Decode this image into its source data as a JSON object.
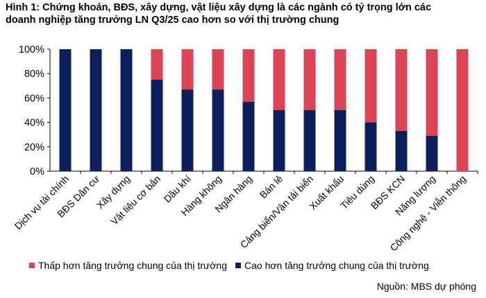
{
  "title": {
    "line1": "Hình 1: Chứng khoán, BĐS, xây dựng, vật liệu xây dựng là các ngành có tỷ trọng lớn các",
    "line2": "doanh nghiệp tăng trưởng LN Q3/25 cao hơn so với thị trường chung"
  },
  "source": "Nguồn: MBS dự phóng",
  "chart_data": {
    "type": "bar",
    "stacked": true,
    "percent": true,
    "categories": [
      "Dịch vụ tài chính",
      "BĐS Dân cư",
      "Xây dựng",
      "Vật liệu cơ bản",
      "Dầu khí",
      "Hàng không",
      "Ngân hàng",
      "Bán lẻ",
      "Cảng biển/Vận tải biển",
      "Xuất khẩu",
      "Tiêu dùng",
      "BĐS KCN",
      "Năng lượng",
      "Công nghệ - Viễn thông"
    ],
    "series": [
      {
        "name": "Cao hơn tăng trưởng chung của thị trường",
        "color": "#0d1f5c",
        "values": [
          100,
          100,
          100,
          75,
          67,
          67,
          57,
          50,
          50,
          50,
          40,
          33,
          29,
          0
        ]
      },
      {
        "name": "Thấp hơn tăng trưởng chung của thị trường",
        "color": "#dc4354",
        "values": [
          0,
          0,
          0,
          25,
          33,
          33,
          43,
          50,
          50,
          50,
          60,
          67,
          71,
          100
        ]
      }
    ],
    "legend_order": [
      1,
      0
    ],
    "yticks": [
      "0%",
      "20%",
      "40%",
      "60%",
      "80%",
      "100%"
    ],
    "ylim": [
      0,
      100
    ],
    "grid": false,
    "legend_position": "bottom"
  }
}
